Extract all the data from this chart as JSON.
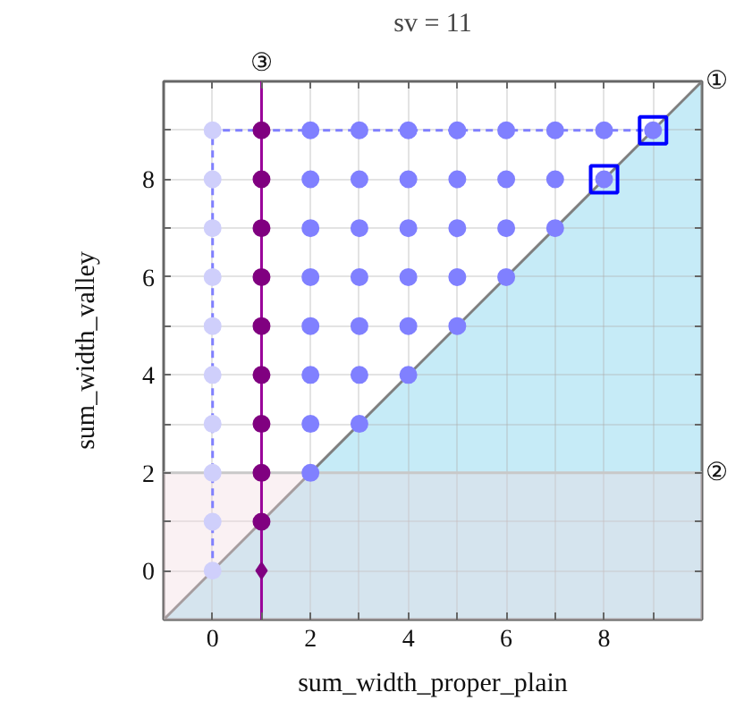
{
  "chart_data": {
    "type": "scatter",
    "title": "sv = 11",
    "xlabel": "sum_width_proper_plain",
    "ylabel": "sum_width_valley",
    "xlim": [
      -1,
      10
    ],
    "ylim": [
      -1,
      10
    ],
    "xticks": [
      0,
      {
        "value": 1,
        "label": null
      },
      2,
      {
        "value": 3,
        "label": null
      },
      4,
      {
        "value": 5,
        "label": null
      },
      6,
      {
        "value": 7,
        "label": null
      },
      8,
      {
        "value": 9,
        "label": null
      }
    ],
    "yticks": [
      0,
      {
        "value": 1,
        "label": null
      },
      2,
      {
        "value": 3,
        "label": null
      },
      4,
      {
        "value": 5,
        "label": null
      },
      6,
      {
        "value": 7,
        "label": null
      },
      8,
      {
        "value": 9,
        "label": null
      }
    ],
    "grid": true,
    "series": [
      {
        "type": "area",
        "color": "#c6ebf7",
        "x": [
          -1,
          10
        ],
        "values": [
          -1,
          10
        ]
      },
      {
        "type": "line",
        "color": "#8080ff",
        "line_style": "dashed",
        "x": [
          0,
          0,
          9
        ],
        "values": [
          0,
          9,
          9
        ]
      },
      {
        "color": "#cfcffb",
        "marker": "circle",
        "x": [
          0,
          0,
          0,
          0,
          0,
          0,
          0,
          0,
          0,
          0
        ],
        "values": [
          0,
          1,
          2,
          3,
          4,
          5,
          6,
          7,
          8,
          9
        ]
      },
      {
        "color": "#800080",
        "marker": "circle",
        "x": [
          1,
          1,
          1,
          1,
          1,
          1,
          1,
          1,
          1
        ],
        "values": [
          1,
          2,
          3,
          4,
          5,
          6,
          7,
          8,
          9
        ]
      },
      {
        "color": "#800080",
        "marker": "diamond",
        "x": [
          1
        ],
        "values": [
          0
        ]
      },
      {
        "color": "#8080ff",
        "marker": "circle",
        "x": [
          2,
          2,
          2,
          2,
          2,
          2,
          2,
          2,
          3,
          3,
          3,
          3,
          3,
          3,
          3,
          4,
          4,
          4,
          4,
          4,
          4,
          5,
          5,
          5,
          5,
          5,
          6,
          6,
          6,
          6,
          7,
          7,
          7,
          8,
          8,
          9
        ],
        "values": [
          2,
          3,
          4,
          5,
          6,
          7,
          8,
          9,
          3,
          4,
          5,
          6,
          7,
          8,
          9,
          4,
          5,
          6,
          7,
          8,
          9,
          5,
          6,
          7,
          8,
          9,
          6,
          7,
          8,
          9,
          7,
          8,
          9,
          8,
          9,
          9
        ]
      },
      {
        "color": "#0000ff",
        "marker": "square",
        "x": [
          8,
          9
        ],
        "values": [
          8,
          9
        ]
      }
    ],
    "ref_lines": [
      {
        "axis": "x",
        "value": 1,
        "label": "③",
        "color": "#990099"
      },
      {
        "axis": "y",
        "value": 2,
        "label": "②",
        "color": "#c8c8c8"
      }
    ],
    "bands": [
      {
        "axis": "y",
        "from": -1,
        "to": 2,
        "color": "#f2d6dc"
      }
    ],
    "annotations": [
      {
        "text": "①",
        "x": 10,
        "y": 10
      }
    ]
  }
}
